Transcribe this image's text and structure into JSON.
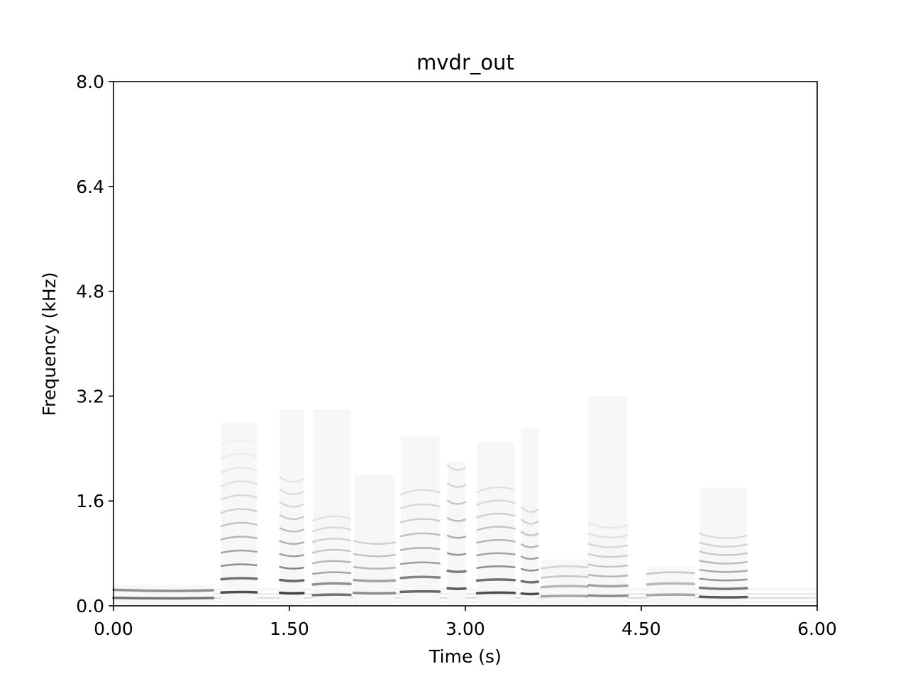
{
  "chart_data": {
    "type": "heatmap",
    "title": "mvdr_out",
    "xlabel": "Time (s)",
    "ylabel": "Frequency (kHz)",
    "xlim": [
      0.0,
      6.0
    ],
    "ylim": [
      0.0,
      8.0
    ],
    "xticks": [
      "0.00",
      "1.50",
      "3.00",
      "4.50",
      "6.00"
    ],
    "yticks": [
      "0.0",
      "1.6",
      "3.2",
      "4.8",
      "6.4",
      "8.0"
    ],
    "grid": false,
    "colormap": "greys",
    "segments": [
      {
        "t0": 0.0,
        "t1": 0.85,
        "f0": 0.115,
        "n": 2,
        "level": 0.55,
        "top": 0.32
      },
      {
        "t0": 0.92,
        "t1": 1.22,
        "f0": 0.21,
        "n": 12,
        "level": 0.7,
        "top": 2.8
      },
      {
        "t0": 1.42,
        "t1": 1.62,
        "f0": 0.19,
        "n": 10,
        "level": 0.75,
        "top": 3.0
      },
      {
        "t0": 1.7,
        "t1": 2.02,
        "f0": 0.17,
        "n": 8,
        "level": 0.55,
        "top": 3.0
      },
      {
        "t0": 2.05,
        "t1": 2.4,
        "f0": 0.19,
        "n": 5,
        "level": 0.45,
        "top": 2.0
      },
      {
        "t0": 2.45,
        "t1": 2.78,
        "f0": 0.22,
        "n": 8,
        "level": 0.6,
        "top": 2.6
      },
      {
        "t0": 2.85,
        "t1": 3.0,
        "f0": 0.26,
        "n": 8,
        "level": 0.65,
        "top": 2.2
      },
      {
        "t0": 3.1,
        "t1": 3.42,
        "f0": 0.2,
        "n": 9,
        "level": 0.7,
        "top": 2.5
      },
      {
        "t0": 3.48,
        "t1": 3.62,
        "f0": 0.18,
        "n": 8,
        "level": 0.7,
        "top": 2.7
      },
      {
        "t0": 3.65,
        "t1": 4.05,
        "f0": 0.15,
        "n": 4,
        "level": 0.35,
        "top": 0.7
      },
      {
        "t0": 4.05,
        "t1": 4.38,
        "f0": 0.15,
        "n": 8,
        "level": 0.45,
        "top": 3.2
      },
      {
        "t0": 4.55,
        "t1": 4.95,
        "f0": 0.17,
        "n": 4,
        "level": 0.35,
        "top": 0.6
      },
      {
        "t0": 5.0,
        "t1": 5.4,
        "f0": 0.13,
        "n": 8,
        "level": 0.65,
        "top": 1.8
      }
    ]
  }
}
